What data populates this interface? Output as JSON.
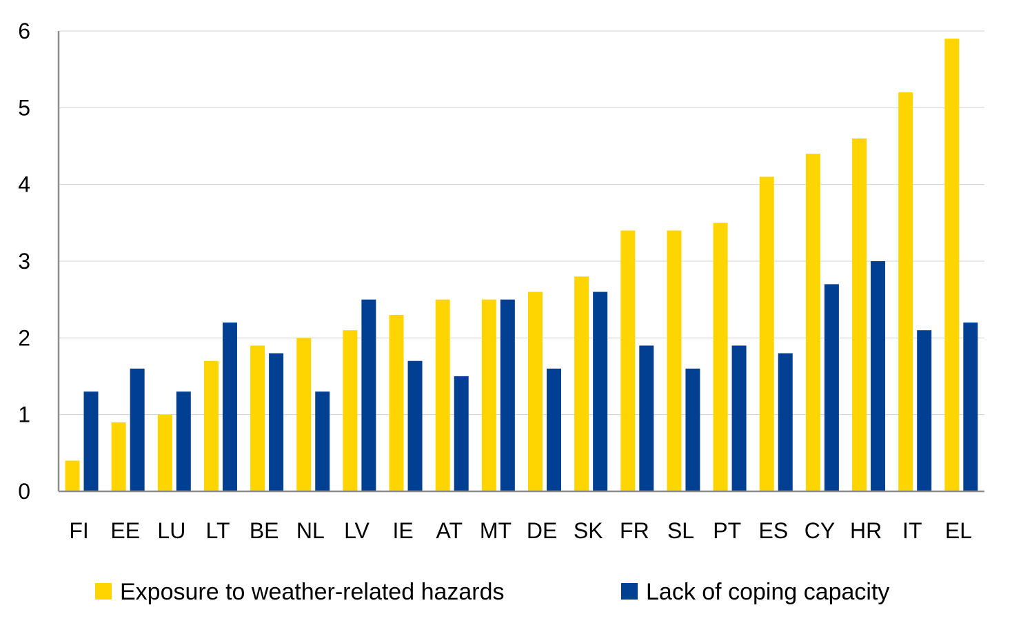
{
  "chart_data": {
    "type": "bar",
    "categories": [
      "FI",
      "EE",
      "LU",
      "LT",
      "BE",
      "NL",
      "LV",
      "IE",
      "AT",
      "MT",
      "DE",
      "SK",
      "FR",
      "SL",
      "PT",
      "ES",
      "CY",
      "HR",
      "IT",
      "EL"
    ],
    "series": [
      {
        "name": "Exposure to weather-related hazards",
        "color": "#FFD500",
        "values": [
          0.4,
          0.9,
          1.0,
          1.7,
          1.9,
          2.0,
          2.1,
          2.3,
          2.5,
          2.5,
          2.6,
          2.8,
          3.4,
          3.4,
          3.5,
          4.1,
          4.4,
          4.6,
          5.2,
          5.9
        ]
      },
      {
        "name": "Lack of coping capacity",
        "color": "#003F91",
        "values": [
          1.3,
          1.6,
          1.3,
          2.2,
          1.8,
          1.3,
          2.5,
          1.7,
          1.5,
          2.5,
          1.6,
          2.6,
          1.9,
          1.6,
          1.9,
          1.8,
          2.7,
          3.0,
          2.1,
          2.2
        ]
      }
    ],
    "ylim": [
      0,
      6
    ],
    "yticks": [
      "0",
      "1",
      "2",
      "3",
      "4",
      "5",
      "6"
    ],
    "grid": true,
    "legend_position": "bottom"
  }
}
